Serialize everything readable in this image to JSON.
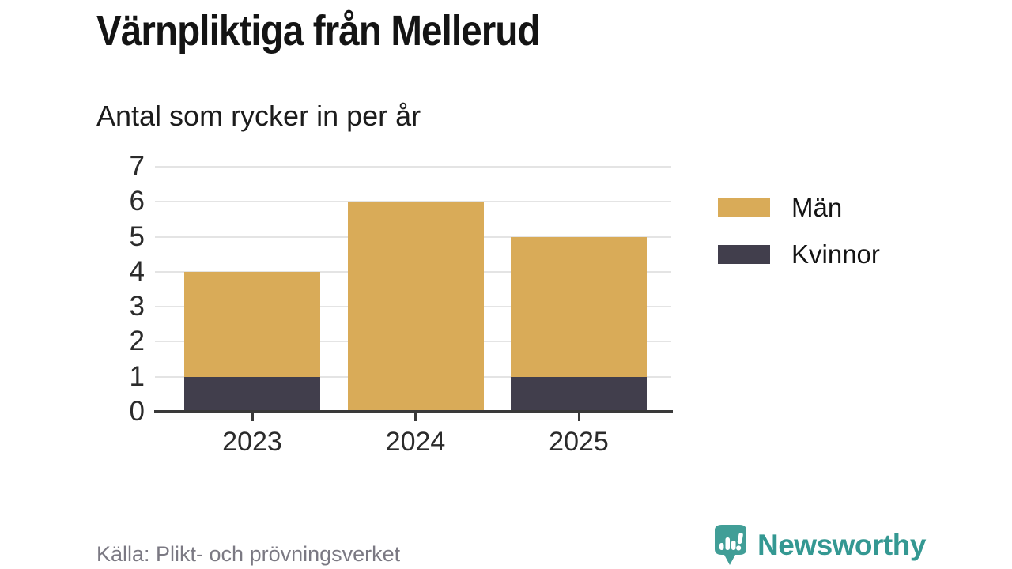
{
  "header": {
    "title": "Värnpliktiga från Mellerud",
    "subtitle": "Antal som rycker in per år"
  },
  "chart_data": {
    "type": "bar",
    "stacked": true,
    "categories": [
      "2023",
      "2024",
      "2025"
    ],
    "series": [
      {
        "name": "Män",
        "color": "#d9ab58",
        "values": [
          3,
          6,
          4
        ]
      },
      {
        "name": "Kvinnor",
        "color": "#413e4c",
        "values": [
          1,
          0,
          1
        ]
      }
    ],
    "stack_totals": [
      4,
      6,
      5
    ],
    "title": "Värnpliktiga från Mellerud",
    "subtitle": "Antal som rycker in per år",
    "xlabel": "",
    "ylabel": "",
    "yticks": [
      0,
      1,
      2,
      3,
      4,
      5,
      6,
      7
    ],
    "ylim": [
      0,
      7
    ],
    "grid": "horizontal",
    "legend_position": "right",
    "colors": {
      "gridline": "#e4e4e4",
      "axis": "#3a3a3a",
      "tick_label": "#2b2b2b"
    }
  },
  "footer": {
    "source": "Källa: Plikt- och prövningsverket",
    "brand": "Newsworthy",
    "brand_color": "#349892",
    "logo_color": "#419e97"
  }
}
